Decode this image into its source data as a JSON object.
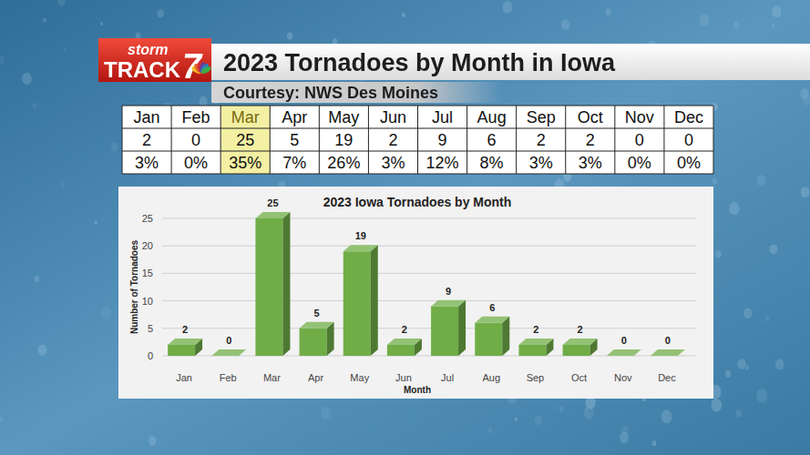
{
  "header": {
    "logo": {
      "top": "storm",
      "main": "TRACK",
      "number": "7"
    },
    "title": "2023 Tornadoes by Month in Iowa",
    "subtitle": "Courtesy: NWS Des Moines"
  },
  "table": {
    "months": [
      "Jan",
      "Feb",
      "Mar",
      "Apr",
      "May",
      "Jun",
      "Jul",
      "Aug",
      "Sep",
      "Oct",
      "Nov",
      "Dec"
    ],
    "counts": [
      2,
      0,
      25,
      5,
      19,
      2,
      9,
      6,
      2,
      2,
      0,
      0
    ],
    "percents": [
      "3%",
      "0%",
      "35%",
      "7%",
      "26%",
      "3%",
      "12%",
      "8%",
      "3%",
      "3%",
      "0%",
      "0%"
    ],
    "highlight": "Mar"
  },
  "chart_data": {
    "type": "bar",
    "title": "2023 Iowa Tornadoes by Month",
    "x_label": "Month",
    "y_label": "Number of Tornadoes",
    "categories": [
      "Jan",
      "Feb",
      "Mar",
      "Apr",
      "May",
      "Jun",
      "Jul",
      "Aug",
      "Sep",
      "Oct",
      "Nov",
      "Dec"
    ],
    "values": [
      2,
      0,
      25,
      5,
      19,
      2,
      9,
      6,
      2,
      2,
      0,
      0
    ],
    "color": "#70ad47",
    "ylim": [
      0,
      25
    ],
    "yticks": [
      0,
      5,
      10,
      15,
      20,
      25
    ],
    "grid": true,
    "data_labels": true
  }
}
